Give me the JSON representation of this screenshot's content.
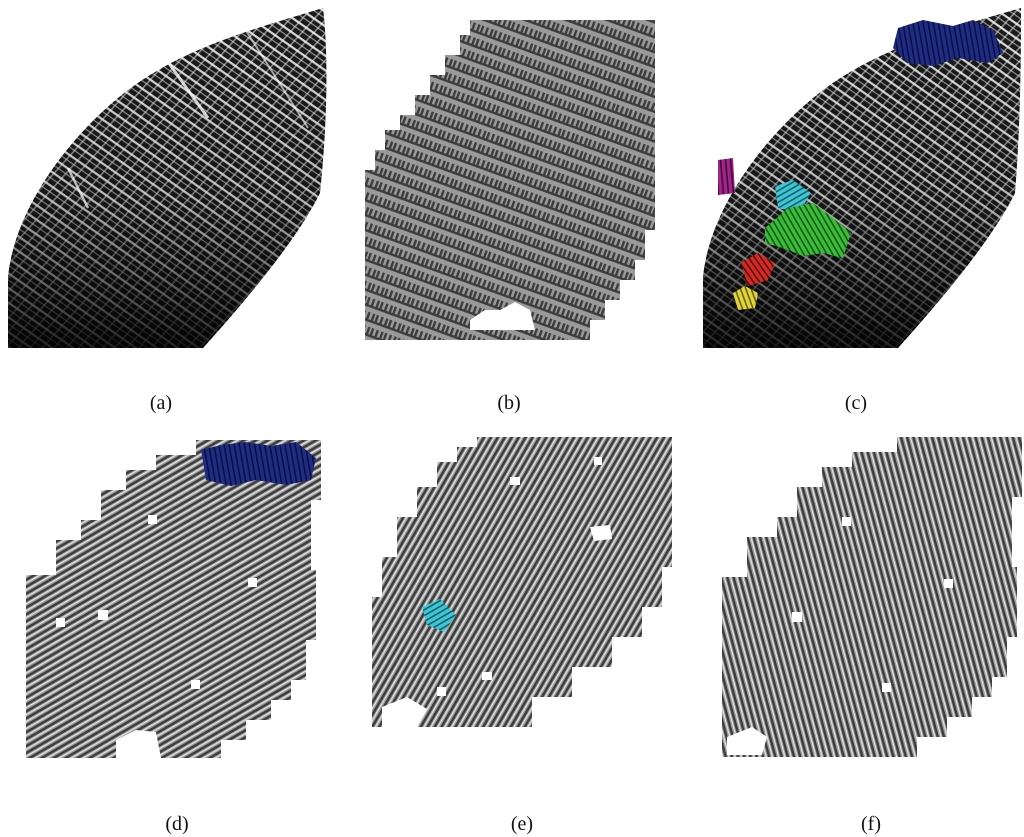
{
  "figure": {
    "captions": {
      "a": "(a)",
      "b": "(b)",
      "c": "(c)",
      "d": "(d)",
      "e": "(e)",
      "f": "(f)"
    }
  },
  "colors": {
    "background": "#ffffff",
    "print_dark": "#111111",
    "ridge_gray": "#8a8a8a",
    "segment_blue": "#1f2d86",
    "segment_cyan": "#3ec6d6",
    "segment_green": "#3bbd3b",
    "segment_red": "#d62b24",
    "segment_yellow": "#e1d53a",
    "segment_magenta": "#a3248a"
  }
}
